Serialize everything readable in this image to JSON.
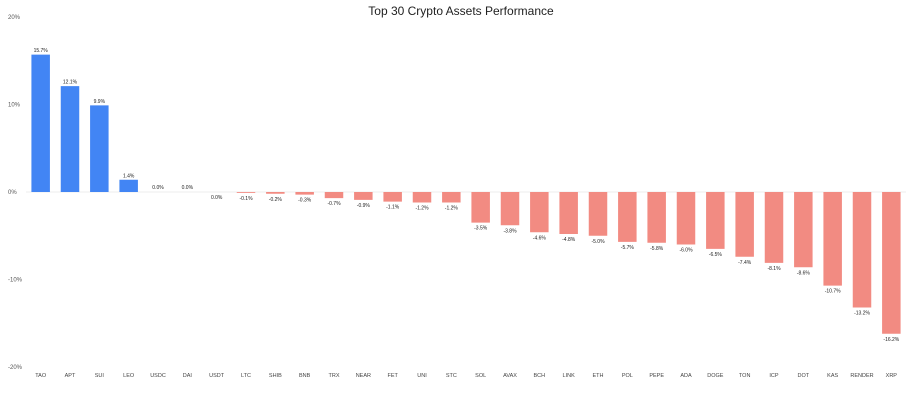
{
  "chart_data": {
    "type": "bar",
    "title": "Top 30 Crypto Assets Performance",
    "xlabel": "",
    "ylabel": "",
    "ylim": [
      -20,
      20
    ],
    "yticks": [
      20,
      10,
      0,
      -10,
      -20
    ],
    "ytick_labels": [
      "20%",
      "10%",
      "0%",
      "-10%",
      "-20%"
    ],
    "grid": false,
    "colors": {
      "positive": "#4285f4",
      "negative": "#f28b82"
    },
    "categories": [
      "TAO",
      "APT",
      "SUI",
      "LEO",
      "USDC",
      "DAI",
      "USDT",
      "LTC",
      "SHIB",
      "BNB",
      "TRX",
      "NEAR",
      "FET",
      "UNI",
      "STC",
      "SOL",
      "AVAX",
      "BCH",
      "LINK",
      "ETH",
      "POL",
      "PEPE",
      "ADA",
      "DOGE",
      "TON",
      "ICP",
      "DOT",
      "KAS",
      "RENDER",
      "XRP"
    ],
    "values": [
      15.7,
      12.1,
      9.9,
      1.4,
      0.0,
      0.0,
      0.0,
      -0.1,
      -0.2,
      -0.3,
      -0.7,
      -0.9,
      -1.1,
      -1.2,
      -1.2,
      -3.5,
      -3.8,
      -4.6,
      -4.8,
      -5.0,
      -5.7,
      -5.8,
      -6.0,
      -6.5,
      -7.4,
      -8.1,
      -8.6,
      -10.7,
      -13.2,
      -16.2
    ],
    "data_labels": [
      "15.7%",
      "12.1%",
      "9.9%",
      "1.4%",
      "0.0%",
      "0.0%",
      "0.0%",
      "-0.1%",
      "-0.2%",
      "-0.3%",
      "-0.7%",
      "-0.9%",
      "-1.1%",
      "-1.2%",
      "-1.2%",
      "-3.5%",
      "-3.8%",
      "-4.6%",
      "-4.8%",
      "-5.0%",
      "-5.7%",
      "-5.8%",
      "-6.0%",
      "-6.5%",
      "-7.4%",
      "-8.1%",
      "-8.6%",
      "-10.7%",
      "-13.2%",
      "-16.2%"
    ]
  }
}
